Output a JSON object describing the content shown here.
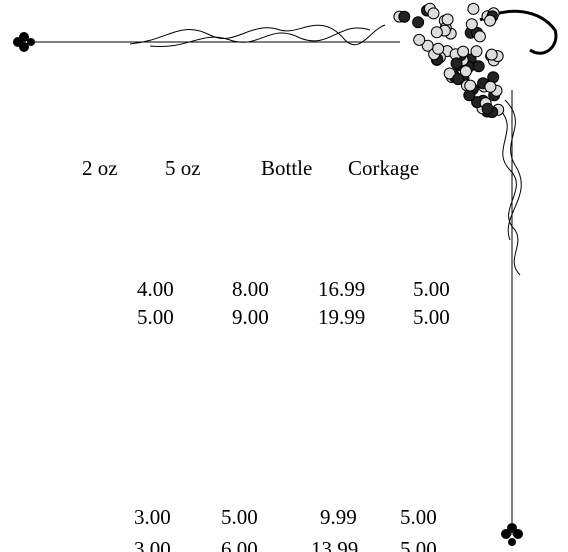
{
  "price_list": {
    "headers": [
      "2 oz",
      "5 oz",
      "Bottle",
      "Corkage"
    ],
    "groups": [
      {
        "rows": [
          [
            "4.00",
            "8.00",
            "16.99",
            "5.00"
          ],
          [
            "5.00",
            "9.00",
            "19.99",
            "5.00"
          ]
        ]
      },
      {
        "rows": [
          [
            "3.00",
            "5.00",
            "9.99",
            "5.00"
          ],
          [
            "3.00",
            "6.00",
            "13.99",
            "5.00"
          ]
        ]
      }
    ]
  }
}
